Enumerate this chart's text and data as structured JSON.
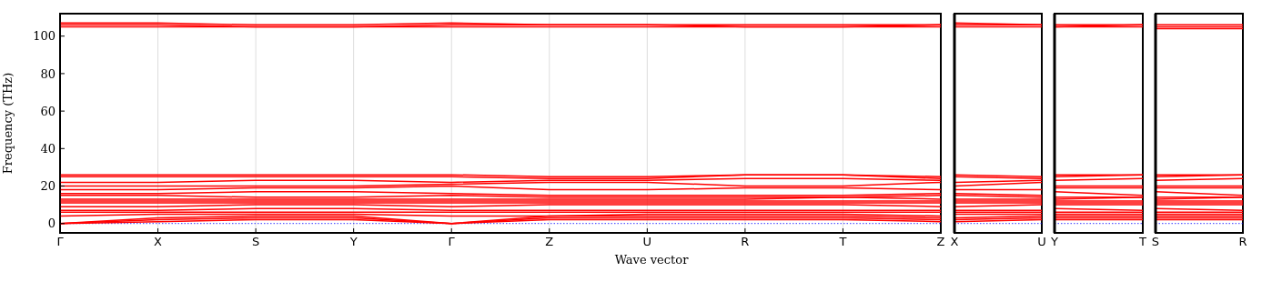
{
  "chart_data": [
    {
      "type": "line",
      "ylabel": "Frequency (THz)",
      "xlabel": "Wave vector",
      "grid": "x",
      "marker": "none",
      "line_style": "solid",
      "categories": [
        "Γ",
        "X",
        "S",
        "Y",
        "Γ",
        "Z",
        "U",
        "R",
        "T",
        "Z"
      ],
      "ylim": [
        -5,
        112
      ],
      "yticks": [
        0,
        20,
        40,
        60,
        80,
        100
      ],
      "ref_lines": [
        {
          "axis": "y",
          "value": 0,
          "color": "#0000ff",
          "line_style": "dotted"
        }
      ],
      "series": [
        {
          "color": "#ff0000",
          "values": [
            0,
            1,
            2,
            2,
            0,
            2,
            2,
            2,
            2,
            1
          ]
        },
        {
          "color": "#ff0000",
          "values": [
            0,
            2,
            3,
            3,
            0,
            3,
            3,
            3,
            3,
            2
          ]
        },
        {
          "color": "#ff0000",
          "values": [
            0,
            3,
            4,
            4,
            0,
            4,
            4,
            4,
            4,
            3
          ]
        },
        {
          "color": "#ff0000",
          "values": [
            4,
            5,
            5,
            5,
            4,
            4,
            5,
            5,
            5,
            4
          ]
        },
        {
          "color": "#ff0000",
          "values": [
            6,
            6,
            6,
            6,
            6,
            6,
            6,
            6,
            6,
            6
          ]
        },
        {
          "color": "#ff0000",
          "values": [
            7,
            7,
            8,
            8,
            7,
            7,
            7,
            7,
            7,
            7
          ]
        },
        {
          "color": "#ff0000",
          "values": [
            9,
            9,
            10,
            10,
            9,
            10,
            10,
            10,
            10,
            9
          ]
        },
        {
          "color": "#ff0000",
          "values": [
            11,
            11,
            11,
            11,
            11,
            11,
            11,
            11,
            11,
            11
          ]
        },
        {
          "color": "#ff0000",
          "values": [
            12,
            12,
            12,
            12,
            12,
            12,
            12,
            12,
            12,
            12
          ]
        },
        {
          "color": "#ff0000",
          "values": [
            13,
            13,
            13,
            13,
            13,
            13,
            13,
            13,
            14,
            13
          ]
        },
        {
          "color": "#ff0000",
          "values": [
            15,
            15,
            14,
            14,
            15,
            14,
            14,
            14,
            14,
            15
          ]
        },
        {
          "color": "#ff0000",
          "values": [
            16,
            16,
            17,
            17,
            16,
            15,
            15,
            15,
            15,
            16
          ]
        },
        {
          "color": "#ff0000",
          "values": [
            18,
            18,
            19,
            19,
            20,
            18,
            18,
            19,
            19,
            18
          ]
        },
        {
          "color": "#ff0000",
          "values": [
            20,
            20,
            20,
            20,
            21,
            22,
            22,
            20,
            20,
            22
          ]
        },
        {
          "color": "#ff0000",
          "values": [
            22,
            22,
            23,
            23,
            22,
            23,
            23,
            24,
            24,
            23
          ]
        },
        {
          "color": "#ff0000",
          "values": [
            25,
            25,
            25,
            25,
            25,
            24,
            24,
            26,
            26,
            24
          ]
        },
        {
          "color": "#ff0000",
          "values": [
            26,
            26,
            26,
            26,
            26,
            25,
            25,
            26,
            26,
            25
          ]
        },
        {
          "color": "#ff0000",
          "values": [
            105,
            105,
            105,
            105,
            105,
            105,
            105,
            105,
            105,
            105
          ]
        },
        {
          "color": "#ff0000",
          "values": [
            106,
            106,
            105,
            105,
            106,
            106,
            106,
            105,
            105,
            106
          ]
        },
        {
          "color": "#ff0000",
          "values": [
            107,
            107,
            106,
            106,
            107,
            106,
            106,
            106,
            106,
            106
          ]
        }
      ]
    },
    {
      "type": "line",
      "tick_labels": "x",
      "marker": "none",
      "line_style": "solid",
      "categories": [
        "X",
        "U"
      ],
      "ylim": [
        -5,
        112
      ],
      "yticks": [
        0,
        20,
        40,
        60,
        80,
        100
      ],
      "ref_lines": [
        {
          "axis": "y",
          "value": 0,
          "color": "#0000ff",
          "line_style": "dotted"
        }
      ],
      "series": [
        {
          "color": "#ff0000",
          "values": [
            1,
            2
          ]
        },
        {
          "color": "#ff0000",
          "values": [
            2,
            3
          ]
        },
        {
          "color": "#ff0000",
          "values": [
            3,
            4
          ]
        },
        {
          "color": "#ff0000",
          "values": [
            5,
            5
          ]
        },
        {
          "color": "#ff0000",
          "values": [
            6,
            6
          ]
        },
        {
          "color": "#ff0000",
          "values": [
            7,
            7
          ]
        },
        {
          "color": "#ff0000",
          "values": [
            9,
            10
          ]
        },
        {
          "color": "#ff0000",
          "values": [
            11,
            11
          ]
        },
        {
          "color": "#ff0000",
          "values": [
            12,
            12
          ]
        },
        {
          "color": "#ff0000",
          "values": [
            13,
            13
          ]
        },
        {
          "color": "#ff0000",
          "values": [
            15,
            14
          ]
        },
        {
          "color": "#ff0000",
          "values": [
            16,
            15
          ]
        },
        {
          "color": "#ff0000",
          "values": [
            18,
            18
          ]
        },
        {
          "color": "#ff0000",
          "values": [
            20,
            22
          ]
        },
        {
          "color": "#ff0000",
          "values": [
            22,
            23
          ]
        },
        {
          "color": "#ff0000",
          "values": [
            25,
            24
          ]
        },
        {
          "color": "#ff0000",
          "values": [
            26,
            25
          ]
        },
        {
          "color": "#ff0000",
          "values": [
            105,
            105
          ]
        },
        {
          "color": "#ff0000",
          "values": [
            106,
            106
          ]
        },
        {
          "color": "#ff0000",
          "values": [
            107,
            106
          ]
        }
      ]
    },
    {
      "type": "line",
      "tick_labels": "x",
      "marker": "none",
      "line_style": "solid",
      "categories": [
        "Y",
        "T"
      ],
      "ylim": [
        -5,
        112
      ],
      "yticks": [
        0,
        20,
        40,
        60,
        80,
        100
      ],
      "ref_lines": [
        {
          "axis": "y",
          "value": 0,
          "color": "#0000ff",
          "line_style": "dotted"
        }
      ],
      "series": [
        {
          "color": "#ff0000",
          "values": [
            2,
            2
          ]
        },
        {
          "color": "#ff0000",
          "values": [
            3,
            3
          ]
        },
        {
          "color": "#ff0000",
          "values": [
            4,
            4
          ]
        },
        {
          "color": "#ff0000",
          "values": [
            5,
            5
          ]
        },
        {
          "color": "#ff0000",
          "values": [
            6,
            6
          ]
        },
        {
          "color": "#ff0000",
          "values": [
            8,
            7
          ]
        },
        {
          "color": "#ff0000",
          "values": [
            10,
            10
          ]
        },
        {
          "color": "#ff0000",
          "values": [
            11,
            11
          ]
        },
        {
          "color": "#ff0000",
          "values": [
            12,
            12
          ]
        },
        {
          "color": "#ff0000",
          "values": [
            13,
            14
          ]
        },
        {
          "color": "#ff0000",
          "values": [
            14,
            14
          ]
        },
        {
          "color": "#ff0000",
          "values": [
            17,
            15
          ]
        },
        {
          "color": "#ff0000",
          "values": [
            19,
            19
          ]
        },
        {
          "color": "#ff0000",
          "values": [
            20,
            20
          ]
        },
        {
          "color": "#ff0000",
          "values": [
            23,
            24
          ]
        },
        {
          "color": "#ff0000",
          "values": [
            25,
            26
          ]
        },
        {
          "color": "#ff0000",
          "values": [
            26,
            26
          ]
        },
        {
          "color": "#ff0000",
          "values": [
            105,
            105
          ]
        },
        {
          "color": "#ff0000",
          "values": [
            105,
            106
          ]
        },
        {
          "color": "#ff0000",
          "values": [
            106,
            106
          ]
        }
      ]
    },
    {
      "type": "line",
      "tick_labels": "x",
      "marker": "none",
      "line_style": "solid",
      "categories": [
        "S",
        "R"
      ],
      "ylim": [
        -5,
        112
      ],
      "yticks": [
        0,
        20,
        40,
        60,
        80,
        100
      ],
      "ref_lines": [
        {
          "axis": "y",
          "value": 0,
          "color": "#0000ff",
          "line_style": "dotted"
        }
      ],
      "series": [
        {
          "color": "#ff0000",
          "values": [
            2,
            2
          ]
        },
        {
          "color": "#ff0000",
          "values": [
            3,
            3
          ]
        },
        {
          "color": "#ff0000",
          "values": [
            4,
            4
          ]
        },
        {
          "color": "#ff0000",
          "values": [
            5,
            5
          ]
        },
        {
          "color": "#ff0000",
          "values": [
            6,
            6
          ]
        },
        {
          "color": "#ff0000",
          "values": [
            8,
            7
          ]
        },
        {
          "color": "#ff0000",
          "values": [
            10,
            10
          ]
        },
        {
          "color": "#ff0000",
          "values": [
            11,
            11
          ]
        },
        {
          "color": "#ff0000",
          "values": [
            12,
            12
          ]
        },
        {
          "color": "#ff0000",
          "values": [
            13,
            14
          ]
        },
        {
          "color": "#ff0000",
          "values": [
            14,
            14
          ]
        },
        {
          "color": "#ff0000",
          "values": [
            17,
            15
          ]
        },
        {
          "color": "#ff0000",
          "values": [
            19,
            19
          ]
        },
        {
          "color": "#ff0000",
          "values": [
            20,
            20
          ]
        },
        {
          "color": "#ff0000",
          "values": [
            23,
            24
          ]
        },
        {
          "color": "#ff0000",
          "values": [
            25,
            26
          ]
        },
        {
          "color": "#ff0000",
          "values": [
            26,
            26
          ]
        },
        {
          "color": "#ff0000",
          "values": [
            104,
            104
          ]
        },
        {
          "color": "#ff0000",
          "values": [
            105,
            105
          ]
        },
        {
          "color": "#ff0000",
          "values": [
            106,
            106
          ]
        }
      ]
    }
  ]
}
